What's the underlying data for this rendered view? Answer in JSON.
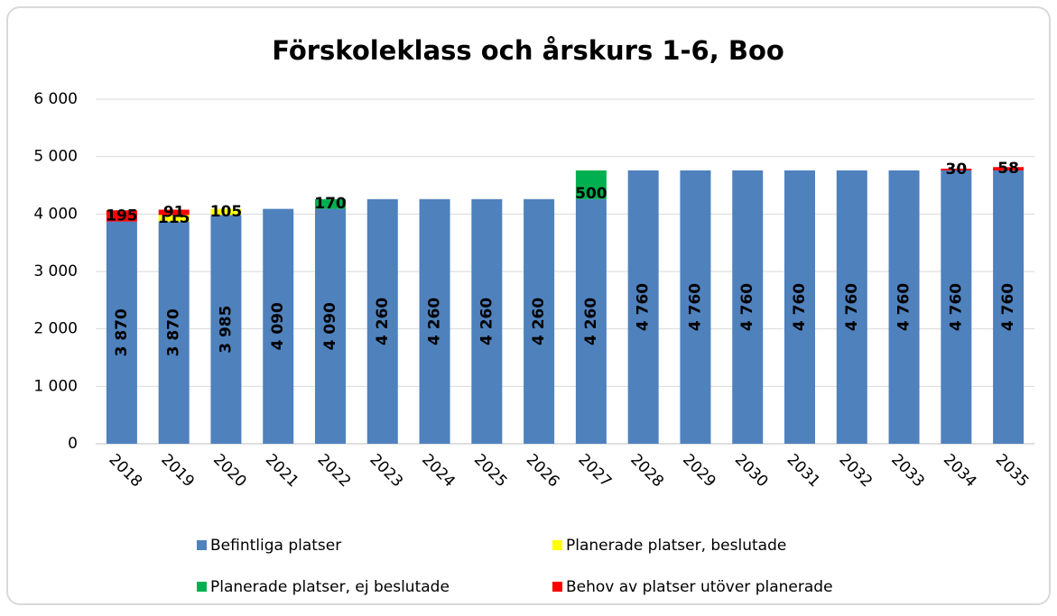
{
  "chart_data": {
    "type": "stacked_bar",
    "title": "Förskoleklass och årskurs 1-6, Boo",
    "categories": [
      "2018",
      "2019",
      "2020",
      "2021",
      "2022",
      "2023",
      "2024",
      "2025",
      "2026",
      "2027",
      "2028",
      "2029",
      "2030",
      "2031",
      "2032",
      "2033",
      "2034",
      "2035"
    ],
    "series": [
      {
        "name": "Befintliga platser",
        "color": "#4f81bd",
        "values": [
          3870,
          3870,
          3985,
          4090,
          4090,
          4260,
          4260,
          4260,
          4260,
          4260,
          4760,
          4760,
          4760,
          4760,
          4760,
          4760,
          4760,
          4760
        ],
        "value_labels": [
          "3 870",
          "3 870",
          "3 985",
          "4 090",
          "4 090",
          "4 260",
          "4 260",
          "4 260",
          "4 260",
          "4 260",
          "4 760",
          "4 760",
          "4 760",
          "4 760",
          "4 760",
          "4 760",
          "4 760",
          "4 760"
        ]
      },
      {
        "name": "Planerade platser, beslutade",
        "color": "#ffff00",
        "values": [
          null,
          115,
          105,
          null,
          null,
          null,
          null,
          null,
          null,
          null,
          null,
          null,
          null,
          null,
          null,
          null,
          null,
          null
        ]
      },
      {
        "name": "Planerade platser, ej beslutade",
        "color": "#00b050",
        "values": [
          null,
          null,
          null,
          null,
          170,
          null,
          null,
          null,
          null,
          500,
          null,
          null,
          null,
          null,
          null,
          null,
          null,
          null
        ]
      },
      {
        "name": "Behov av platser utöver planerade",
        "color": "#ff0000",
        "values": [
          195,
          91,
          null,
          null,
          null,
          null,
          null,
          null,
          null,
          null,
          null,
          null,
          null,
          null,
          null,
          null,
          30,
          58
        ]
      }
    ],
    "ylim": [
      0,
      6000
    ],
    "yticks": [
      0,
      {
        "value": 1000,
        "label": "1 000"
      },
      {
        "value": 2000,
        "label": "2 000"
      },
      {
        "value": 3000,
        "label": "3 000"
      },
      {
        "value": 4000,
        "label": "4 000"
      },
      {
        "value": 5000,
        "label": "5 000"
      },
      {
        "value": 6000,
        "label": "6 000"
      }
    ],
    "grid": true
  }
}
